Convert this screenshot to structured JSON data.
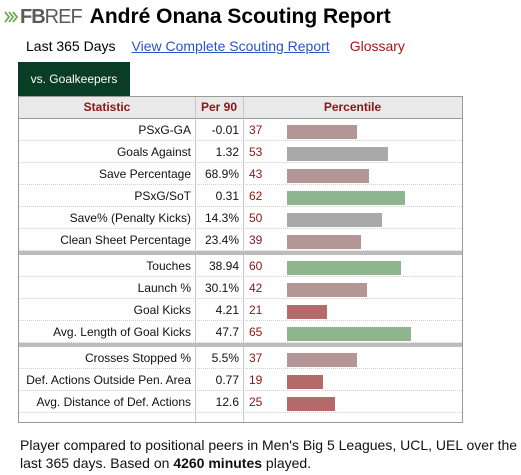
{
  "header": {
    "logo_fb": "FB",
    "logo_ref": "REF",
    "title": "André Onana Scouting Report"
  },
  "links": {
    "period": "Last 365 Days",
    "complete": "View Complete Scouting Report",
    "glossary": "Glossary"
  },
  "tab": {
    "label": "vs. Goalkeepers"
  },
  "table": {
    "headers": {
      "stat": "Statistic",
      "per90": "Per 90",
      "pct": "Percentile"
    },
    "groups": [
      [
        {
          "stat": "PSxG-GA",
          "per90": "-0.01",
          "pct": 37
        },
        {
          "stat": "Goals Against",
          "per90": "1.32",
          "pct": 53
        },
        {
          "stat": "Save Percentage",
          "per90": "68.9%",
          "pct": 43
        },
        {
          "stat": "PSxG/SoT",
          "per90": "0.31",
          "pct": 62
        },
        {
          "stat": "Save% (Penalty Kicks)",
          "per90": "14.3%",
          "pct": 50
        },
        {
          "stat": "Clean Sheet Percentage",
          "per90": "23.4%",
          "pct": 39
        }
      ],
      [
        {
          "stat": "Touches",
          "per90": "38.94",
          "pct": 60
        },
        {
          "stat": "Launch %",
          "per90": "30.1%",
          "pct": 42
        },
        {
          "stat": "Goal Kicks",
          "per90": "4.21",
          "pct": 21
        },
        {
          "stat": "Avg. Length of Goal Kicks",
          "per90": "47.7",
          "pct": 65
        }
      ],
      [
        {
          "stat": "Crosses Stopped %",
          "per90": "5.5%",
          "pct": 37
        },
        {
          "stat": "Def. Actions Outside Pen. Area",
          "per90": "0.77",
          "pct": 19
        },
        {
          "stat": "Avg. Distance of Def. Actions",
          "per90": "12.6",
          "pct": 25
        }
      ]
    ]
  },
  "colors": {
    "high": "#8fb58f",
    "mid": "#a9a9a9",
    "midlow": "#b59696",
    "low": "#b56a6a"
  },
  "footer": {
    "text_before": "Player compared to positional peers in Men's Big 5 Leagues, UCL, UEL over the last 365 days. Based on ",
    "minutes": "4260 minutes",
    "text_after": " played."
  }
}
